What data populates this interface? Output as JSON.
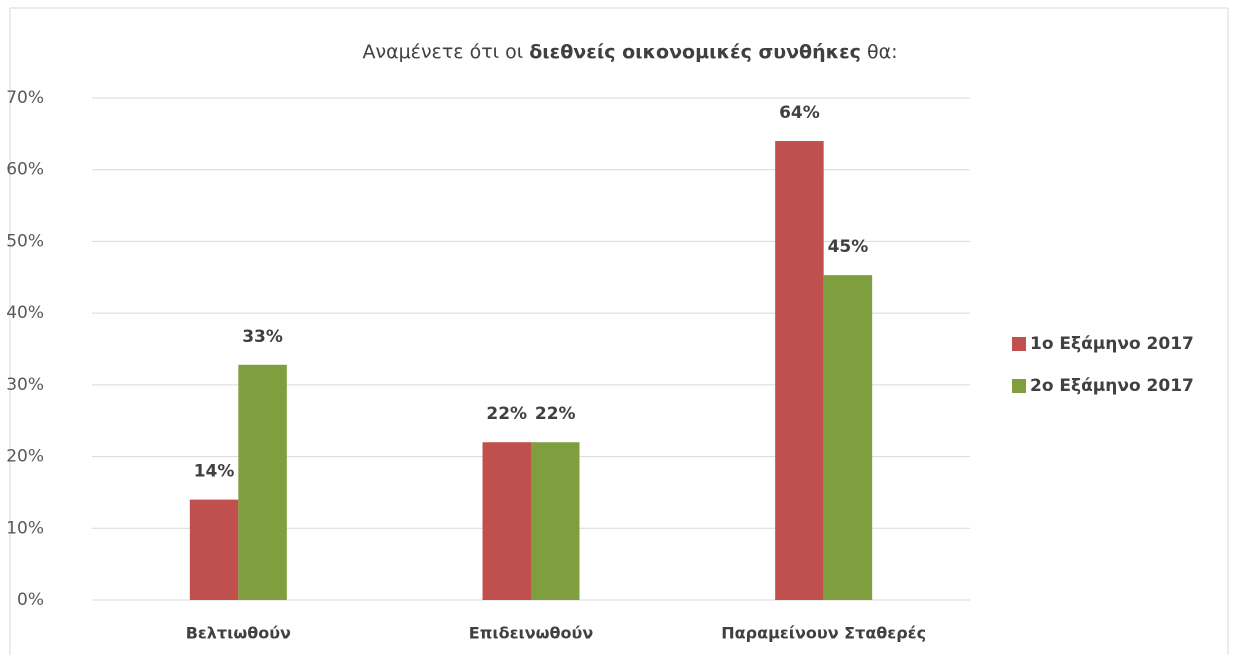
{
  "chart_data": {
    "type": "bar",
    "title": [
      {
        "text": "Αναμένετε ότι οι ",
        "bold": false
      },
      {
        "text": "διεθνείς οικονομικές συνθήκες",
        "bold": true
      },
      {
        "text": " θα:",
        "bold": false
      }
    ],
    "categories": [
      "Βελτιωθούν",
      "Επιδεινωθούν",
      "Παραμείνουν Σταθερές"
    ],
    "series": [
      {
        "name": "1ο Εξάμηνο 2017",
        "color": "#c0504d",
        "values": [
          14,
          22,
          64
        ],
        "value_labels": [
          "14%",
          "22%",
          "64%"
        ]
      },
      {
        "name": "2ο Εξάμηνο 2017",
        "color": "#7f9f3f",
        "values": [
          32.8,
          22,
          45.3
        ],
        "value_labels": [
          "33%",
          "22%",
          "45%"
        ]
      }
    ],
    "ylim": [
      0,
      70
    ],
    "yticks": [
      {
        "value": 0,
        "label": "0%"
      },
      {
        "value": 10,
        "label": "10%"
      },
      {
        "value": 20,
        "label": "20%"
      },
      {
        "value": 30,
        "label": "30%"
      },
      {
        "value": 40,
        "label": "40%"
      },
      {
        "value": 50,
        "label": "50%"
      },
      {
        "value": 60,
        "label": "60%"
      },
      {
        "value": 70,
        "label": "70%"
      }
    ],
    "grid": true,
    "legend": "right"
  }
}
